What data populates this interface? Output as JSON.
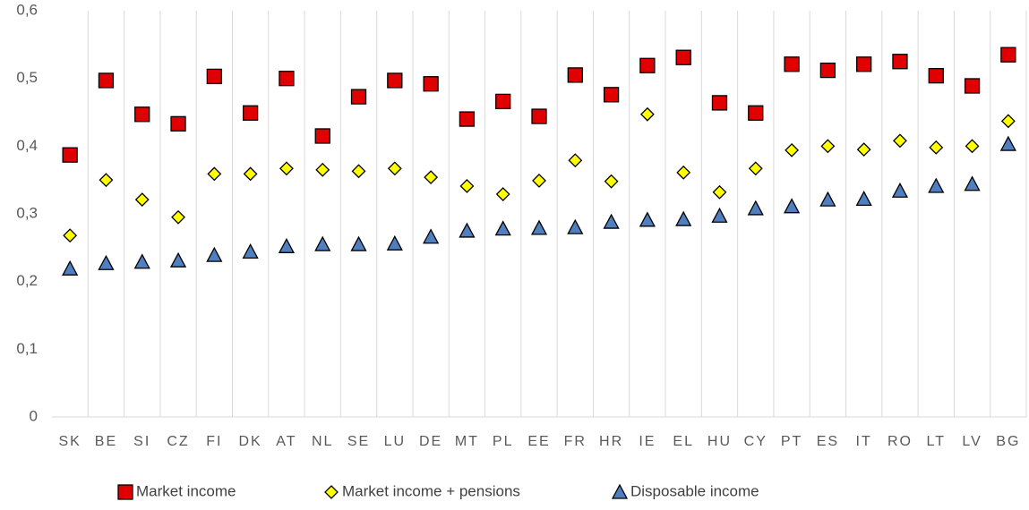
{
  "chart_data": {
    "type": "scatter",
    "categories": [
      "SK",
      "BE",
      "SI",
      "CZ",
      "FI",
      "DK",
      "AT",
      "NL",
      "SE",
      "LU",
      "DE",
      "MT",
      "PL",
      "EE",
      "FR",
      "HR",
      "IE",
      "EL",
      "HU",
      "CY",
      "PT",
      "ES",
      "IT",
      "RO",
      "LT",
      "LV",
      "BG"
    ],
    "series": [
      {
        "name": "Market income",
        "color": "#e00000",
        "marker": "square",
        "values": [
          0.387,
          0.497,
          0.447,
          0.433,
          0.503,
          0.449,
          0.5,
          0.415,
          0.473,
          0.497,
          0.492,
          0.44,
          0.466,
          0.444,
          0.505,
          0.476,
          0.519,
          0.531,
          0.464,
          0.449,
          0.521,
          0.512,
          0.521,
          0.525,
          0.504,
          0.489,
          0.535
        ]
      },
      {
        "name": "Market income + pensions",
        "color": "#ffff00",
        "marker": "diamond",
        "values": [
          0.268,
          0.35,
          0.321,
          0.295,
          0.359,
          0.359,
          0.367,
          0.365,
          0.363,
          0.367,
          0.354,
          0.341,
          0.329,
          0.349,
          0.379,
          0.348,
          0.447,
          0.361,
          0.332,
          0.367,
          0.394,
          0.4,
          0.395,
          0.408,
          0.398,
          0.4,
          0.437
        ]
      },
      {
        "name": "Disposable income",
        "color": "#4f7fbf",
        "marker": "triangle",
        "values": [
          0.219,
          0.227,
          0.229,
          0.231,
          0.239,
          0.244,
          0.252,
          0.255,
          0.255,
          0.256,
          0.266,
          0.275,
          0.278,
          0.279,
          0.28,
          0.288,
          0.291,
          0.292,
          0.297,
          0.308,
          0.311,
          0.321,
          0.322,
          0.334,
          0.341,
          0.344,
          0.403
        ]
      }
    ],
    "ylim": [
      0,
      0.6
    ],
    "yticks": [
      0,
      {
        "value": 0.1,
        "label": "0,1"
      },
      {
        "value": 0.2,
        "label": "0,2"
      },
      {
        "value": 0.3,
        "label": "0,3"
      },
      {
        "value": 0.4,
        "label": "0,4"
      },
      {
        "value": 0.5,
        "label": "0,5"
      },
      {
        "value": 0.6,
        "label": "0,6"
      }
    ],
    "legend": "bottom"
  }
}
